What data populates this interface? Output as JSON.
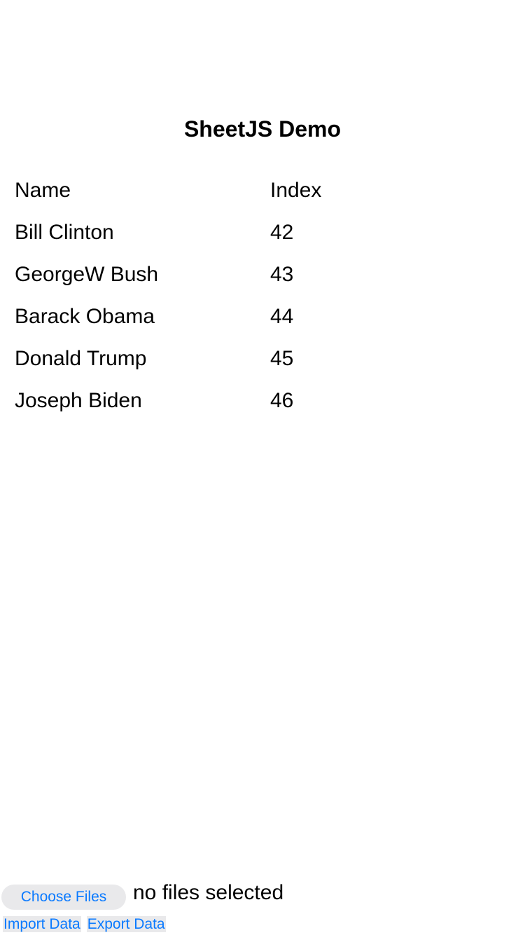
{
  "header": {
    "title": "SheetJS Demo"
  },
  "table": {
    "columns": [
      "Name",
      "Index"
    ],
    "rows": [
      [
        "Bill Clinton",
        "42"
      ],
      [
        "GeorgeW Bush",
        "43"
      ],
      [
        "Barack Obama",
        "44"
      ],
      [
        "Donald Trump",
        "45"
      ],
      [
        "Joseph Biden",
        "46"
      ]
    ]
  },
  "file_input": {
    "button_label": "Choose Files",
    "status": "no files selected"
  },
  "actions": {
    "import_label": "Import Data",
    "export_label": "Export Data"
  },
  "colors": {
    "accent": "#0a7aff",
    "button_bg": "#e9e9eb"
  }
}
